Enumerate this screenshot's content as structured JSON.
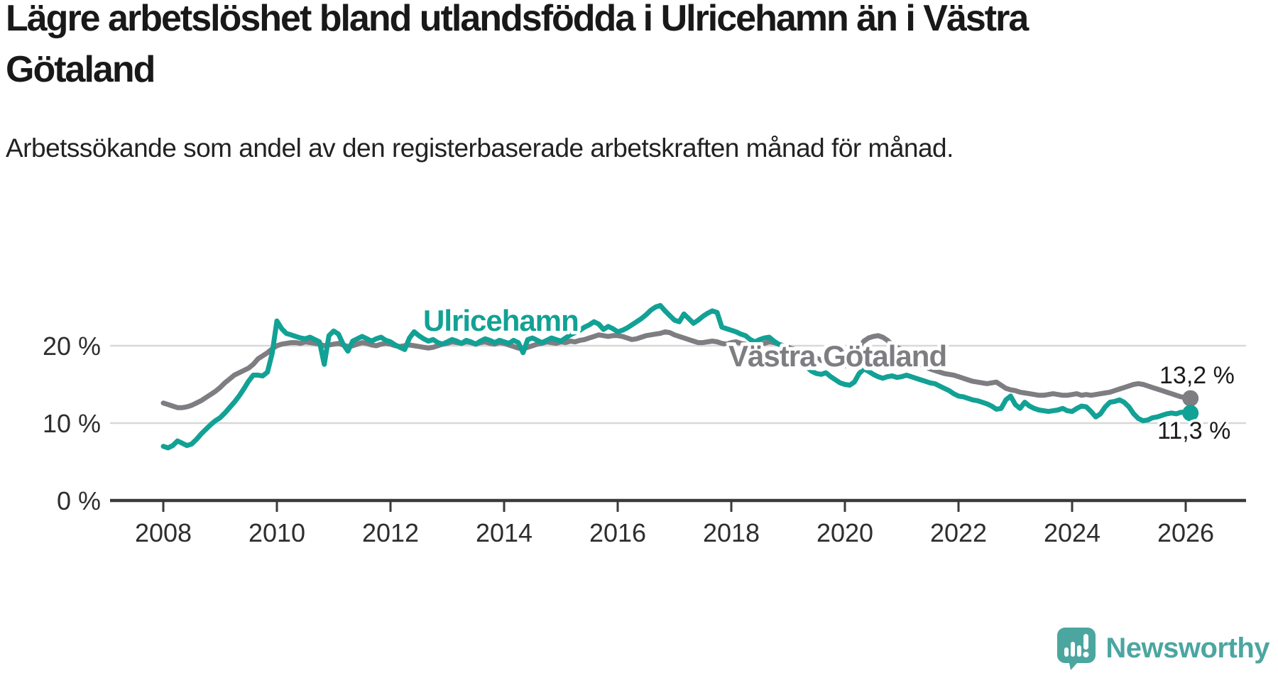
{
  "chart_data": {
    "type": "line",
    "title": "Lägre arbetslöshet bland utlandsfödda i Ulricehamn än i Västra Götaland",
    "subtitle": "Arbetssökande som andel av den registerbaserade arbetskraften månad för månad.",
    "x_start_month": "2008-01",
    "x_end_month": "2026-02",
    "x_frequency": "monthly",
    "x_ticks": [
      2008,
      2010,
      2012,
      2014,
      2016,
      2018,
      2020,
      2022,
      2024,
      2026
    ],
    "y_ticks": [
      {
        "value": 20,
        "label": "20 %"
      },
      {
        "value": 10,
        "label": "10 %"
      },
      {
        "value": 0,
        "label": "0 %"
      }
    ],
    "ylim": [
      0,
      27
    ],
    "grid": "horizontal",
    "legend_position": "inline-labels",
    "series": [
      {
        "name": "Västra Götaland",
        "color": "#7d7d82",
        "end_label": "13,2 %",
        "end_value": 13.2,
        "values": [
          12.6,
          12.4,
          12.2,
          12.0,
          12.0,
          12.1,
          12.3,
          12.6,
          12.9,
          13.3,
          13.7,
          14.1,
          14.6,
          15.2,
          15.7,
          16.2,
          16.5,
          16.8,
          17.1,
          17.6,
          18.3,
          18.7,
          19.1,
          19.6,
          20.0,
          20.2,
          20.3,
          20.4,
          20.4,
          20.3,
          20.5,
          20.4,
          20.3,
          20.2,
          20.0,
          20.1,
          20.2,
          20.3,
          20.1,
          19.9,
          20.0,
          20.2,
          20.4,
          20.3,
          20.1,
          20.0,
          20.2,
          20.3,
          20.2,
          20.0,
          19.9,
          20.0,
          20.1,
          20.0,
          19.9,
          19.8,
          19.7,
          19.8,
          20.0,
          20.2,
          20.3,
          20.5,
          20.4,
          20.3,
          20.5,
          20.4,
          20.2,
          20.4,
          20.5,
          20.3,
          20.2,
          20.4,
          20.3,
          20.1,
          19.9,
          19.7,
          19.6,
          19.8,
          20.0,
          20.2,
          20.3,
          20.5,
          20.4,
          20.3,
          20.5,
          20.4,
          20.6,
          20.5,
          20.7,
          20.8,
          21.0,
          21.2,
          21.4,
          21.3,
          21.2,
          21.3,
          21.3,
          21.2,
          21.0,
          20.8,
          20.9,
          21.1,
          21.3,
          21.4,
          21.5,
          21.6,
          21.8,
          21.7,
          21.4,
          21.2,
          21.0,
          20.8,
          20.6,
          20.4,
          20.4,
          20.5,
          20.6,
          20.5,
          20.3,
          20.2,
          20.4,
          20.5,
          20.3,
          20.2,
          20.0,
          19.9,
          20.1,
          20.3,
          20.5,
          20.4,
          20.2,
          20.0,
          19.8,
          19.6,
          19.4,
          19.1,
          18.9,
          18.6,
          18.4,
          18.1,
          17.9,
          17.7,
          17.5,
          17.4,
          17.4,
          17.5,
          18.2,
          19.5,
          20.6,
          21.0,
          21.2,
          21.3,
          21.1,
          20.7,
          20.1,
          19.8,
          19.5,
          19.0,
          18.5,
          18.0,
          17.6,
          17.3,
          17.0,
          16.8,
          16.6,
          16.4,
          16.3,
          16.2,
          16.0,
          15.8,
          15.6,
          15.4,
          15.3,
          15.2,
          15.1,
          15.2,
          15.3,
          14.9,
          14.5,
          14.3,
          14.2,
          14.0,
          13.9,
          13.8,
          13.7,
          13.6,
          13.6,
          13.7,
          13.8,
          13.7,
          13.6,
          13.6,
          13.7,
          13.8,
          13.6,
          13.7,
          13.6,
          13.7,
          13.8,
          13.9,
          14.0,
          14.2,
          14.4,
          14.6,
          14.8,
          15.0,
          15.1,
          15.0,
          14.8,
          14.6,
          14.4,
          14.2,
          14.0,
          13.8,
          13.6,
          13.4,
          13.3,
          13.2
        ]
      },
      {
        "name": "Ulricehamn",
        "color": "#12a195",
        "end_label": "11,3 %",
        "end_value": 11.3,
        "values": [
          7.0,
          6.8,
          7.1,
          7.7,
          7.4,
          7.1,
          7.3,
          7.9,
          8.6,
          9.2,
          9.8,
          10.3,
          10.7,
          11.3,
          12.0,
          12.7,
          13.5,
          14.4,
          15.4,
          16.2,
          16.2,
          16.1,
          16.6,
          19.0,
          23.2,
          22.2,
          21.6,
          21.4,
          21.2,
          21.0,
          20.9,
          21.1,
          20.8,
          20.5,
          17.6,
          21.3,
          21.9,
          21.5,
          20.2,
          19.3,
          20.6,
          20.9,
          21.2,
          20.9,
          20.6,
          20.9,
          21.1,
          20.7,
          20.5,
          20.1,
          19.8,
          19.5,
          21.0,
          21.8,
          21.3,
          20.9,
          20.6,
          20.8,
          20.4,
          20.2,
          20.5,
          20.8,
          20.6,
          20.3,
          20.7,
          20.5,
          20.2,
          20.6,
          20.9,
          20.7,
          20.4,
          20.7,
          20.5,
          20.3,
          20.7,
          20.4,
          19.1,
          20.8,
          21.0,
          20.7,
          20.4,
          20.7,
          21.0,
          20.8,
          20.6,
          21.0,
          21.4,
          21.7,
          22.0,
          22.4,
          22.7,
          23.1,
          22.8,
          22.1,
          22.5,
          22.2,
          21.8,
          22.0,
          22.3,
          22.7,
          23.1,
          23.5,
          24.0,
          24.6,
          25.0,
          25.2,
          24.5,
          23.9,
          23.3,
          23.1,
          24.1,
          23.5,
          22.9,
          23.3,
          23.8,
          24.2,
          24.5,
          24.3,
          22.4,
          22.2,
          22.0,
          21.8,
          21.5,
          21.3,
          20.8,
          20.5,
          20.8,
          21.0,
          21.1,
          20.6,
          20.2,
          20.0,
          19.6,
          19.0,
          18.4,
          17.8,
          17.2,
          16.7,
          16.4,
          16.3,
          16.5,
          16.0,
          15.6,
          15.2,
          15.0,
          14.9,
          15.3,
          16.4,
          17.0,
          16.7,
          16.3,
          16.0,
          15.8,
          16.0,
          16.1,
          15.9,
          16.0,
          16.2,
          16.0,
          15.8,
          15.6,
          15.4,
          15.2,
          15.1,
          14.8,
          14.5,
          14.2,
          13.8,
          13.5,
          13.4,
          13.2,
          13.0,
          12.9,
          12.7,
          12.5,
          12.2,
          11.8,
          11.9,
          13.0,
          13.5,
          12.4,
          11.9,
          12.7,
          12.2,
          11.9,
          11.7,
          11.6,
          11.5,
          11.6,
          11.7,
          11.9,
          11.6,
          11.5,
          11.9,
          12.2,
          12.1,
          11.5,
          10.8,
          11.2,
          12.1,
          12.7,
          12.8,
          13.0,
          12.7,
          12.1,
          11.2,
          10.6,
          10.3,
          10.4,
          10.7,
          10.8,
          11.0,
          11.2,
          11.3,
          11.2,
          11.4,
          11.4,
          11.3
        ]
      }
    ]
  },
  "branding": {
    "logo_text": "Newsworthy"
  },
  "colors": {
    "ulricehamn": "#12a195",
    "vastra_gotaland": "#7d7d82",
    "grid": "#d8d8d8",
    "axis": "#3a3a3a",
    "tick_text": "#2e2e2e",
    "value_text": "#1b1b1b",
    "title_text": "#191919",
    "logo": "#4ba6a0"
  }
}
